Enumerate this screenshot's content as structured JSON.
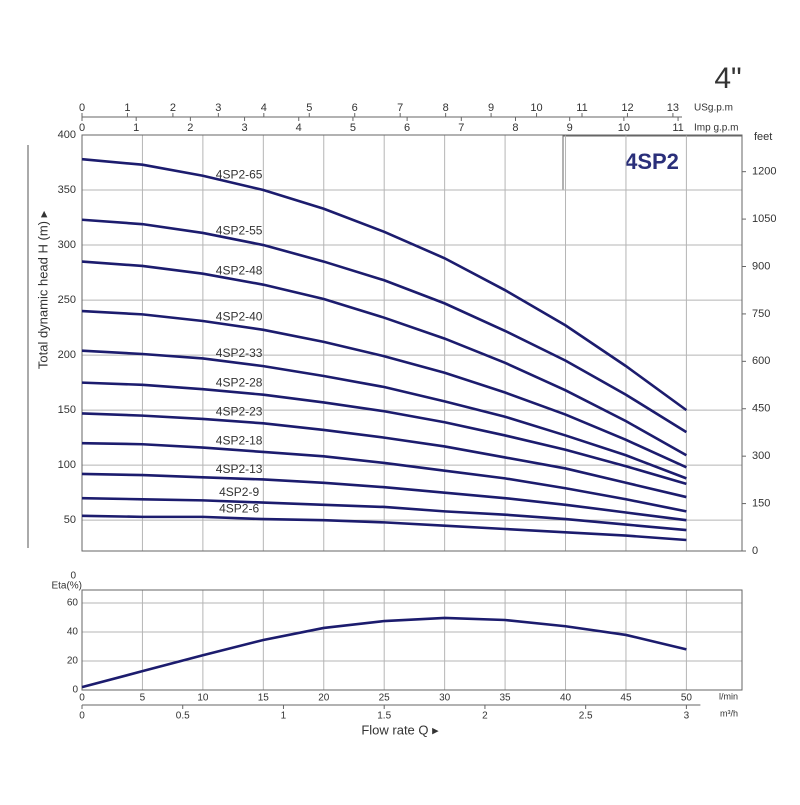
{
  "chart_data": [
    {
      "type": "line",
      "title": "4\"",
      "subtitle": "4SP2",
      "x": [
        0,
        5,
        10,
        15,
        20,
        25,
        30,
        35,
        40,
        45,
        50
      ],
      "xlim": [
        0,
        54.6
      ],
      "top_axes": [
        {
          "label": "USg.p.m",
          "xlim": [
            0,
            14.52
          ],
          "ticks": [
            0,
            1,
            2,
            3,
            4,
            5,
            6,
            7,
            8,
            9,
            10,
            11,
            12,
            13
          ]
        },
        {
          "label": "Imp g.p.m",
          "xlim": [
            0,
            12.18
          ],
          "ticks": [
            0,
            1,
            2,
            3,
            4,
            5,
            6,
            7,
            8,
            9,
            10,
            11
          ]
        }
      ],
      "ylabel": "Total dynamic head H (m) ▸",
      "ylim": [
        22,
        400
      ],
      "yticks": [
        50,
        100,
        150,
        200,
        250,
        300,
        350,
        400
      ],
      "y2label": "feet",
      "y2lim": [
        0,
        1316
      ],
      "y2ticks": [
        0,
        150,
        300,
        450,
        600,
        750,
        900,
        1050,
        1200
      ],
      "grid": true,
      "series": [
        {
          "name": "4SP2-65",
          "color": "#1c1c6e",
          "values": [
            378,
            373,
            363,
            350,
            333,
            312,
            288,
            259,
            227,
            190,
            150
          ]
        },
        {
          "name": "4SP2-55",
          "color": "#1c1c6e",
          "values": [
            323,
            319,
            311,
            300,
            285,
            268,
            247,
            222,
            195,
            164,
            130
          ]
        },
        {
          "name": "4SP2-48",
          "color": "#1c1c6e",
          "values": [
            285,
            281,
            274,
            264,
            251,
            234,
            215,
            193,
            168,
            140,
            109
          ]
        },
        {
          "name": "4SP2-40",
          "color": "#1c1c6e",
          "values": [
            240,
            237,
            231,
            223,
            212,
            199,
            184,
            166,
            146,
            123,
            98
          ]
        },
        {
          "name": "4SP2-33",
          "color": "#1c1c6e",
          "values": [
            204,
            201,
            197,
            190,
            181,
            171,
            158,
            144,
            127,
            109,
            88
          ]
        },
        {
          "name": "4SP2-28",
          "color": "#1c1c6e",
          "values": [
            175,
            173,
            169,
            164,
            157,
            149,
            139,
            127,
            114,
            99,
            83
          ]
        },
        {
          "name": "4SP2-23",
          "color": "#1c1c6e",
          "values": [
            147,
            145,
            142,
            138,
            132,
            125,
            117,
            107,
            97,
            84,
            71
          ]
        },
        {
          "name": "4SP2-18",
          "color": "#1c1c6e",
          "values": [
            120,
            119,
            116,
            112,
            108,
            102,
            95,
            88,
            79,
            69,
            58
          ]
        },
        {
          "name": "4SP2-13",
          "color": "#1c1c6e",
          "values": [
            92,
            91,
            89,
            87,
            84,
            80,
            75,
            70,
            64,
            57,
            50
          ]
        },
        {
          "name": "4SP2-9",
          "color": "#1c1c6e",
          "values": [
            70,
            69,
            68,
            66,
            64,
            62,
            58,
            55,
            51,
            46,
            41
          ]
        },
        {
          "name": "4SP2-6",
          "color": "#1c1c6e",
          "values": [
            54,
            53,
            53,
            51,
            50,
            48,
            45,
            42,
            39,
            36,
            32
          ]
        }
      ]
    },
    {
      "type": "line",
      "x": [
        0,
        5,
        10,
        15,
        20,
        25,
        30,
        35,
        40,
        45,
        50
      ],
      "xlim": [
        0,
        54.6
      ],
      "xticks": [
        0,
        5,
        10,
        15,
        20,
        25,
        30,
        35,
        40,
        45,
        50
      ],
      "xunit": "l/min",
      "x2unit": "m³/h",
      "x2lim": [
        0,
        3.276
      ],
      "x2ticks": [
        0,
        0.5,
        1,
        1.5,
        2,
        2.5,
        3
      ],
      "xlabel": "Flow rate Q ▸",
      "ylabel": "Eta(%)",
      "top_text": "0",
      "ylim": [
        0,
        69
      ],
      "yticks": [
        0,
        20,
        40,
        60
      ],
      "grid": true,
      "color": "#1c1c6e",
      "values": [
        2,
        13,
        24,
        34.5,
        42.8,
        47.6,
        49.7,
        48.3,
        44,
        38,
        28
      ]
    }
  ]
}
